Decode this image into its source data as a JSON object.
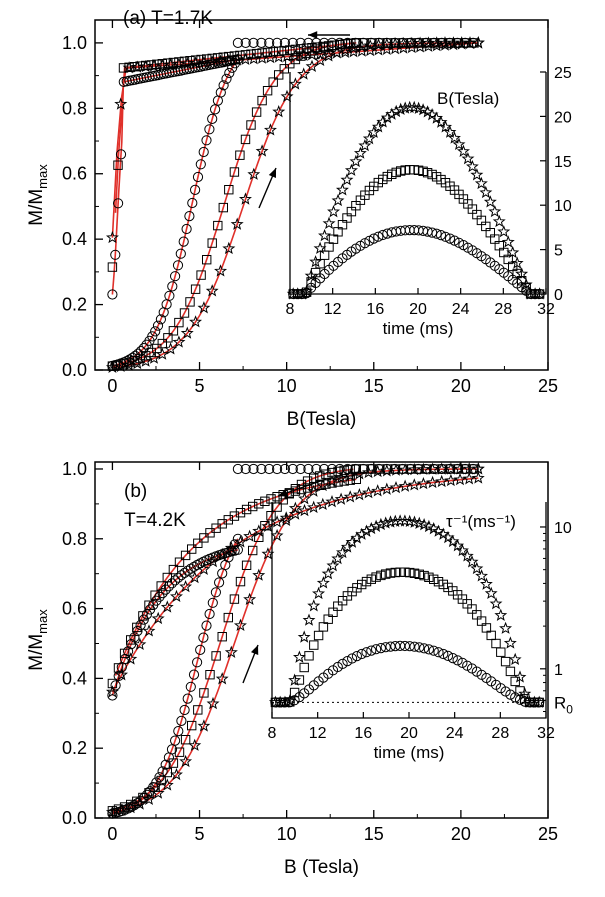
{
  "chart_data": [
    {
      "panel": "a",
      "type": "scatter",
      "title": "(a)  T=1.7K",
      "xlabel": "B(Tesla)",
      "ylabel": "M/M",
      "ylabel_sub": "max",
      "xlim": [
        -1,
        25
      ],
      "ylim": [
        0,
        1.07
      ],
      "xticks": [
        0,
        5,
        10,
        15,
        20,
        25
      ],
      "yticks": [
        0.0,
        0.2,
        0.4,
        0.6,
        0.8,
        1.0
      ],
      "xticklabels": [
        "0",
        "5",
        "10",
        "15",
        "20",
        "25"
      ],
      "yticklabels": [
        "0.0",
        "0.2",
        "0.4",
        "0.6",
        "0.8",
        "1.0"
      ],
      "series": [
        {
          "marker": "circle",
          "bmax": 7.2,
          "up_center": 4.6,
          "up_width": 1.05,
          "down_center": -0.5,
          "down_width": 0.4,
          "drop": 0.06
        },
        {
          "marker": "square",
          "bmax": 14.0,
          "up_center": 6.4,
          "up_width": 1.45,
          "down_center": -0.6,
          "down_width": 0.4,
          "drop": 0.08
        },
        {
          "marker": "star",
          "bmax": 21.0,
          "up_center": 7.5,
          "up_width": 1.55,
          "down_center": -0.7,
          "down_width": 0.4,
          "drop": 0.08
        }
      ],
      "arrows": [
        "sweep-down (top)",
        "sweep-up (right)"
      ],
      "inset": {
        "type": "line",
        "xlabel": "time (ms)",
        "ylabel": "B(Tesla)",
        "xlim": [
          8,
          32
        ],
        "ylim": [
          0,
          25
        ],
        "xticks": [
          8,
          12,
          16,
          20,
          24,
          28,
          32
        ],
        "xticklabels": [
          "8",
          "12",
          "16",
          "20",
          "24",
          "28",
          "32"
        ],
        "yticks": [
          0,
          5,
          10,
          15,
          20,
          25
        ],
        "yticklabels": [
          "0",
          "5",
          "10",
          "15",
          "20",
          "25"
        ],
        "pulse": {
          "start": 9.5,
          "end": 30.5,
          "peak_time": 18.9
        },
        "series": [
          {
            "marker": "circle",
            "peak": 7.2
          },
          {
            "marker": "square",
            "peak": 14.0
          },
          {
            "marker": "star",
            "peak": 21.0
          }
        ]
      }
    },
    {
      "panel": "b",
      "type": "scatter",
      "title": "(b)",
      "subtitle": "T=4.2K",
      "xlabel": "B (Tesla)",
      "ylabel": "M/M",
      "ylabel_sub": "max",
      "xlim": [
        -1,
        25
      ],
      "ylim": [
        0,
        1.02
      ],
      "xticks": [
        0,
        5,
        10,
        15,
        20,
        25
      ],
      "yticks": [
        0.0,
        0.2,
        0.4,
        0.6,
        0.8,
        1.0
      ],
      "xticklabels": [
        "0",
        "5",
        "10",
        "15",
        "20",
        "25"
      ],
      "yticklabels": [
        "0.0",
        "0.2",
        "0.4",
        "0.6",
        "0.8",
        "1.0"
      ],
      "series": [
        {
          "marker": "circle",
          "bmax": 7.2,
          "up_center": 4.9,
          "up_width": 1.15,
          "down_center": 0.6,
          "down_width": 1.9
        },
        {
          "marker": "square",
          "bmax": 14.0,
          "up_center": 6.2,
          "up_width": 1.6,
          "down_center": 0.0,
          "down_width": 2.1
        },
        {
          "marker": "star",
          "bmax": 21.0,
          "up_center": 7.0,
          "up_width": 1.7,
          "down_center": -0.5,
          "down_width": 2.2
        }
      ],
      "arrows": [
        "sweep-down (top)",
        "sweep-up (right)"
      ],
      "inset": {
        "type": "line",
        "log_y": true,
        "xlabel": "time (ms)",
        "ylabel": "τ⁻¹(ms⁻¹)",
        "xlim": [
          8,
          32
        ],
        "ylim": [
          0.45,
          15
        ],
        "xticks": [
          8,
          12,
          16,
          20,
          24,
          28,
          32
        ],
        "xticklabels": [
          "8",
          "12",
          "16",
          "20",
          "24",
          "28",
          "32"
        ],
        "yticks": [
          1,
          10
        ],
        "yticklabels": [
          "1",
          "10"
        ],
        "baseline_label": "R",
        "baseline_sub": "0",
        "baseline": 0.58,
        "pulse": {
          "start": 9.5,
          "end": 30.5,
          "peak_time": 18.9
        },
        "series": [
          {
            "marker": "circle",
            "peak": 1.45
          },
          {
            "marker": "square",
            "peak": 4.8
          },
          {
            "marker": "star",
            "peak": 11.0
          }
        ]
      }
    }
  ]
}
